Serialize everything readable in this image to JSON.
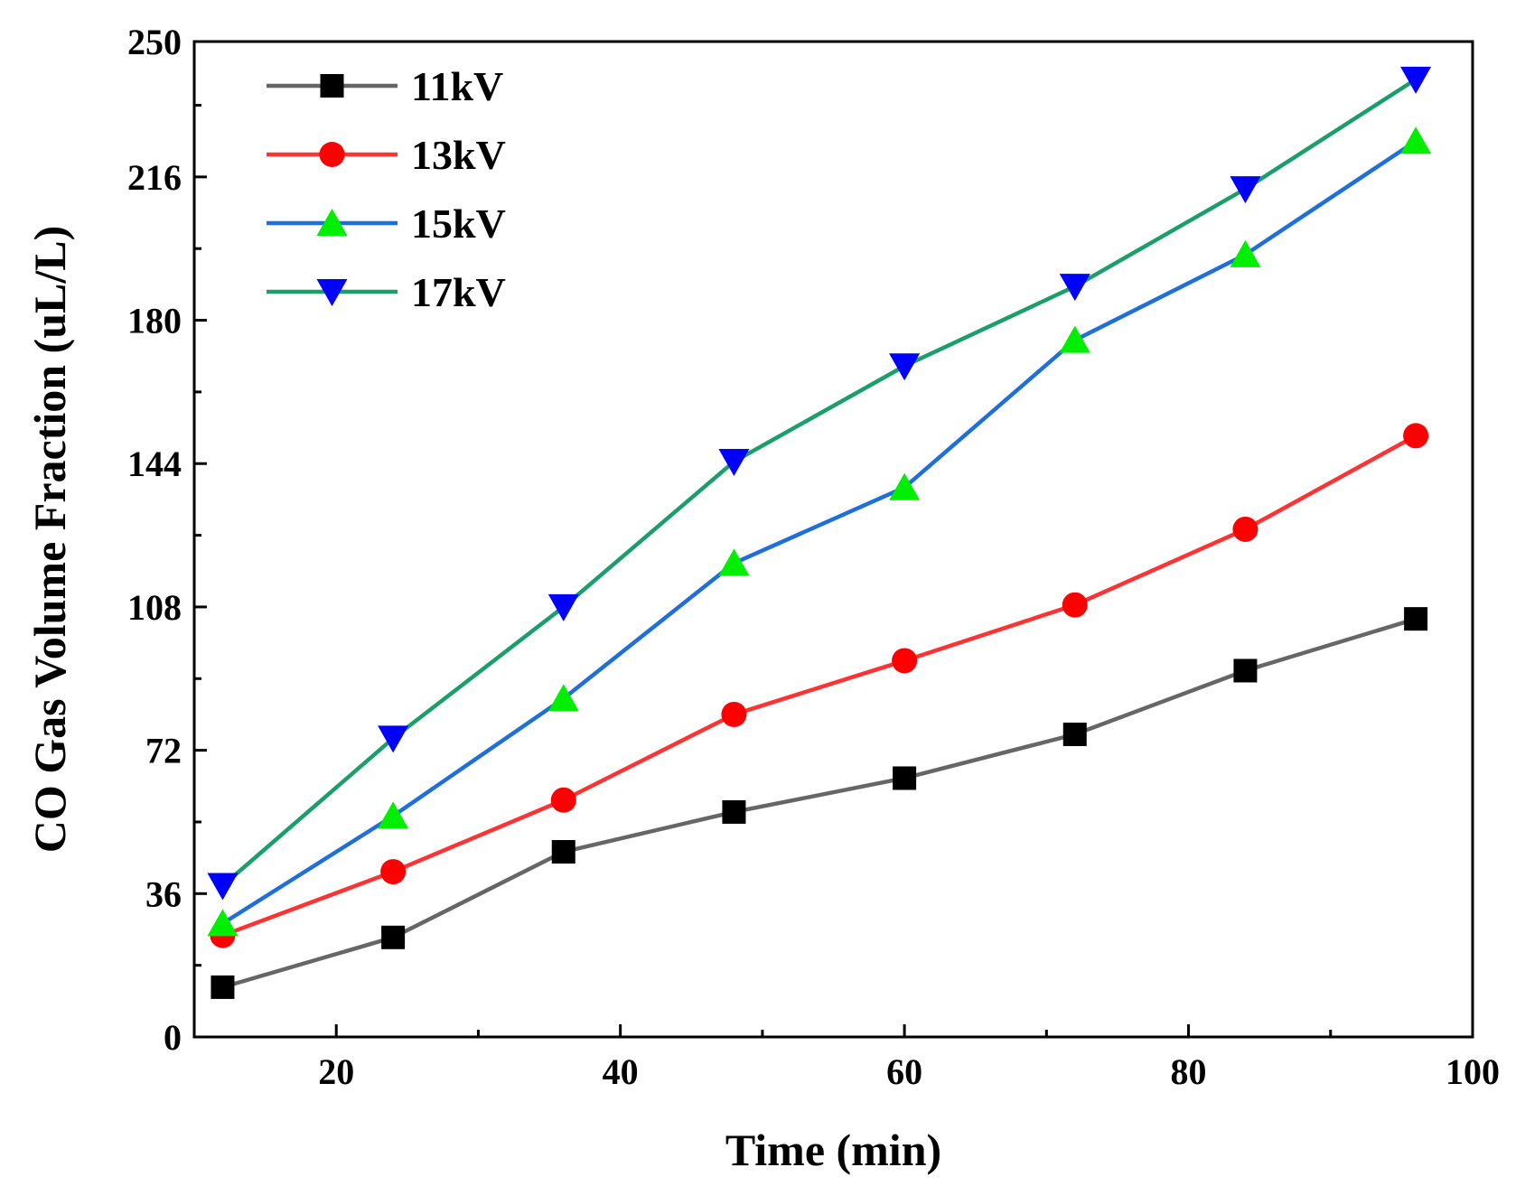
{
  "chart_data": {
    "type": "line",
    "xlabel": "Time (min)",
    "ylabel": "CO Gas Volume Fraction (uL/L)",
    "xlim": [
      10,
      100
    ],
    "ylim": [
      0,
      250
    ],
    "xticks": [
      20,
      40,
      60,
      80,
      100
    ],
    "yticks": [
      0,
      36,
      72,
      108,
      144,
      180,
      216,
      250
    ],
    "x": [
      12,
      24,
      36,
      48,
      60,
      72,
      84,
      96
    ],
    "legend_position": "top-left",
    "grid": false,
    "series": [
      {
        "name": "11kV",
        "color": "#666666",
        "marker": "square",
        "marker_color": "#000000",
        "values": [
          12.5,
          25,
          46.5,
          56.5,
          65,
          76,
          92,
          105
        ]
      },
      {
        "name": "13kV",
        "color": "#ff3333",
        "marker": "circle",
        "marker_color": "#ff0000",
        "values": [
          25.5,
          41.5,
          59.5,
          81,
          94.5,
          108.5,
          127.5,
          151
        ]
      },
      {
        "name": "15kV",
        "color": "#1e6fd9",
        "marker": "triangle-up",
        "marker_color": "#00ee00",
        "values": [
          28.5,
          55.5,
          85,
          119,
          138,
          175,
          196.5,
          225
        ]
      },
      {
        "name": "17kV",
        "color": "#1a9e6a",
        "marker": "triangle-down",
        "marker_color": "#0000ff",
        "values": [
          38,
          75,
          108,
          144.5,
          168.5,
          188.5,
          213,
          240.5
        ]
      }
    ]
  }
}
